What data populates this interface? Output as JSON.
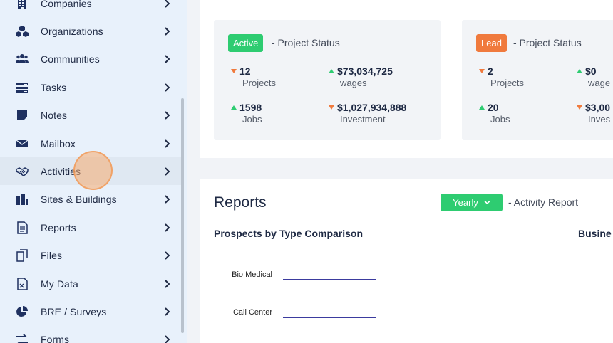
{
  "sidebar": {
    "items": [
      {
        "label": "Companies",
        "icon": "building-icon"
      },
      {
        "label": "Organizations",
        "icon": "cubes-icon"
      },
      {
        "label": "Communities",
        "icon": "users-icon"
      },
      {
        "label": "Tasks",
        "icon": "tasks-icon"
      },
      {
        "label": "Notes",
        "icon": "note-icon"
      },
      {
        "label": "Mailbox",
        "icon": "envelope-icon"
      },
      {
        "label": "Activities",
        "icon": "handshake-icon"
      },
      {
        "label": "Sites & Buildings",
        "icon": "city-icon"
      },
      {
        "label": "Reports",
        "icon": "report-icon"
      },
      {
        "label": "Files",
        "icon": "copy-icon"
      },
      {
        "label": "My Data",
        "icon": "excel-file-icon"
      },
      {
        "label": "BRE / Surveys",
        "icon": "pie-chart-icon"
      },
      {
        "label": "Forms",
        "icon": "exchange-icon"
      }
    ],
    "active_item": "Activities"
  },
  "status_cards": [
    {
      "badge": "Active",
      "badge_color": "#2ecc71",
      "note": "- Project Status",
      "metrics": [
        {
          "value": "12",
          "label": "Projects",
          "trend": "down"
        },
        {
          "value": "$73,034,725",
          "label": "wages",
          "trend": "up"
        },
        {
          "value": "1598",
          "label": "Jobs",
          "trend": "up"
        },
        {
          "value": "$1,027,934,888",
          "label": "Investment",
          "trend": "down"
        }
      ]
    },
    {
      "badge": "Lead",
      "badge_color": "#f07a3d",
      "note": "- Project Status",
      "metrics": [
        {
          "value": "2",
          "label": "Projects",
          "trend": "down"
        },
        {
          "value": "$0",
          "label": "wage",
          "trend": "up"
        },
        {
          "value": "20",
          "label": "Jobs",
          "trend": "up"
        },
        {
          "value": "$3,00",
          "label": "Inves",
          "trend": "down"
        }
      ]
    }
  ],
  "reports": {
    "title": "Reports",
    "period": "Yearly",
    "period_note": "- Activity Report",
    "chart_title": "Prospects by Type Comparison",
    "chart2_title": "Busine"
  },
  "chart_data": {
    "type": "bar",
    "title": "Prospects by Type Comparison",
    "categories": [
      "Bio Medical",
      "Call Center"
    ],
    "series_color": "#3b3b9e"
  }
}
